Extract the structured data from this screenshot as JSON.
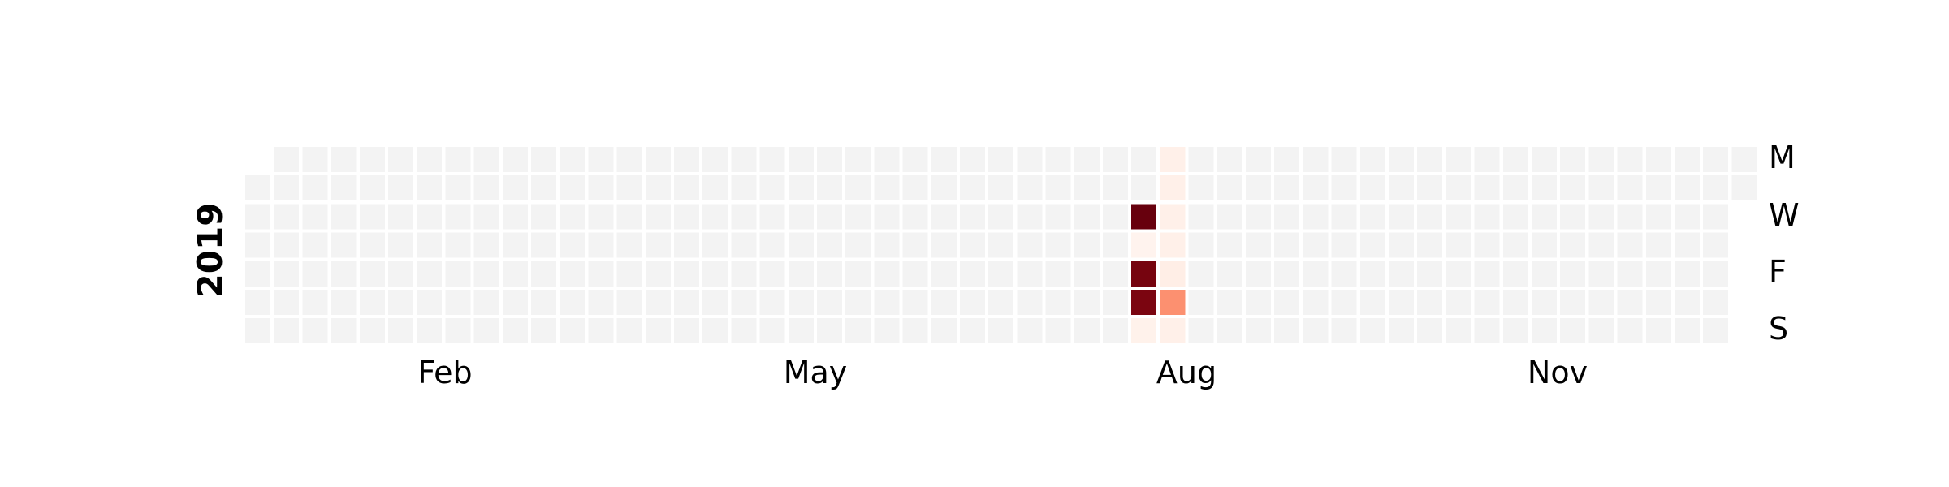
{
  "chart_data": {
    "type": "heatmap",
    "subtype": "calendar",
    "year": "2019",
    "weekday_labels": [
      "M",
      "W",
      "F",
      "S"
    ],
    "month_labels": [
      "Feb",
      "May",
      "Aug",
      "Nov"
    ],
    "colormap": "Reds",
    "colors": {
      "empty_cell": "#f3f3f3",
      "background": "#ffffff"
    },
    "values_scale": "relative 0-1",
    "nonzero_days": [
      {
        "date": "2019-08-07",
        "value": 1.0
      },
      {
        "date": "2019-08-09",
        "value": 0.97
      },
      {
        "date": "2019-08-10",
        "value": 0.96
      },
      {
        "date": "2019-08-17",
        "value": 0.38
      },
      {
        "date": "2019-08-08",
        "value": 0.01
      },
      {
        "date": "2019-08-11",
        "value": 0.02
      },
      {
        "date": "2019-08-12",
        "value": 0.03
      },
      {
        "date": "2019-08-13",
        "value": 0.03
      },
      {
        "date": "2019-08-14",
        "value": 0.03
      },
      {
        "date": "2019-08-15",
        "value": 0.03
      },
      {
        "date": "2019-08-16",
        "value": 0.04
      },
      {
        "date": "2019-08-18",
        "value": 0.03
      }
    ],
    "grid": false,
    "legend": "none"
  }
}
